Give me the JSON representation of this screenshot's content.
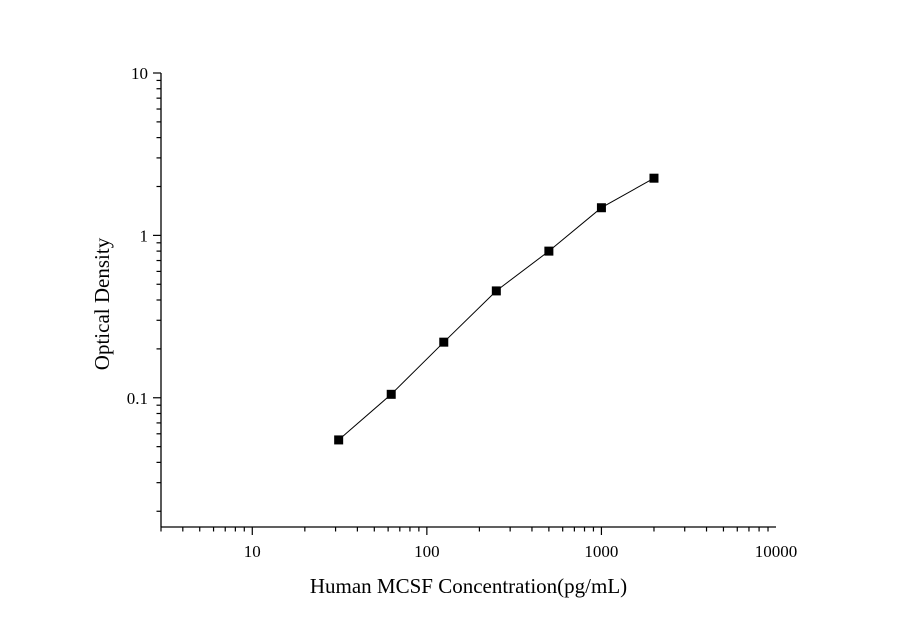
{
  "chart_data": {
    "type": "scatter",
    "xlabel": "Human MCSF Concentration(pg/mL)",
    "ylabel": "Optical Density",
    "x_scale": "log",
    "y_scale": "log",
    "xlim": [
      3,
      10000
    ],
    "ylim": [
      0.016,
      10
    ],
    "x_ticks": [
      10,
      100,
      1000,
      10000
    ],
    "x_tick_labels": [
      "10",
      "100",
      "1000",
      "10000"
    ],
    "y_ticks": [
      0.1,
      1,
      10
    ],
    "y_tick_labels": [
      "0.1",
      "1",
      "10"
    ],
    "grid": false,
    "legend": "none",
    "marker": "square",
    "line": "connected",
    "series": [
      {
        "x": [
          31.25,
          62.5,
          125,
          250,
          500,
          1000,
          2000
        ],
        "y": [
          0.055,
          0.105,
          0.22,
          0.455,
          0.8,
          1.48,
          2.25
        ]
      }
    ]
  }
}
